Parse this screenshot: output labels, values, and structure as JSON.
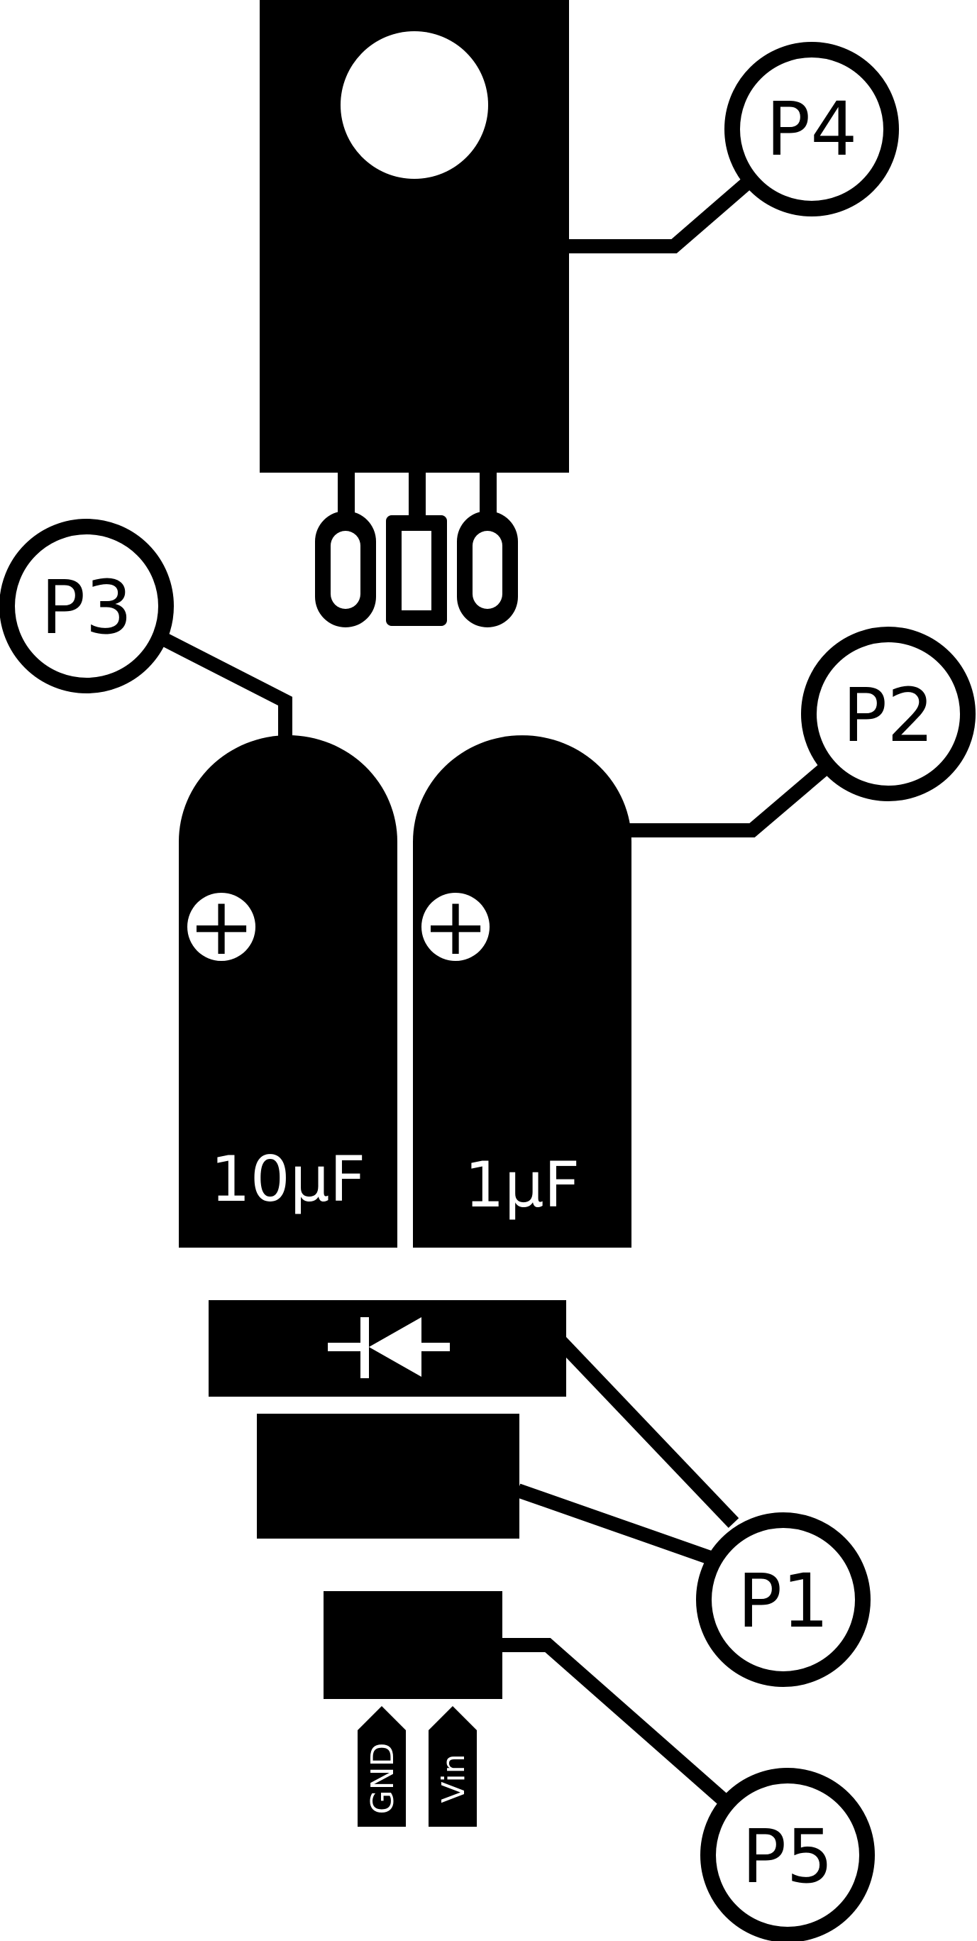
{
  "colors": {
    "ink": "#000000",
    "paper": "#ffffff"
  },
  "labels": {
    "p1": "P1",
    "p2": "P2",
    "p3": "P3",
    "p4": "P4",
    "p5": "P5",
    "cap_10uf": "10μF",
    "cap_1uf": "1μF",
    "cap_10uf_polarity": "+",
    "cap_1uf_polarity": "+",
    "pin_gnd": "GND",
    "pin_vin": "Vin"
  },
  "icons": {
    "diode": "diode-symbol-icon",
    "mounting_hole": "mounting-hole-icon",
    "polarity": "plus-in-circle-icon"
  }
}
